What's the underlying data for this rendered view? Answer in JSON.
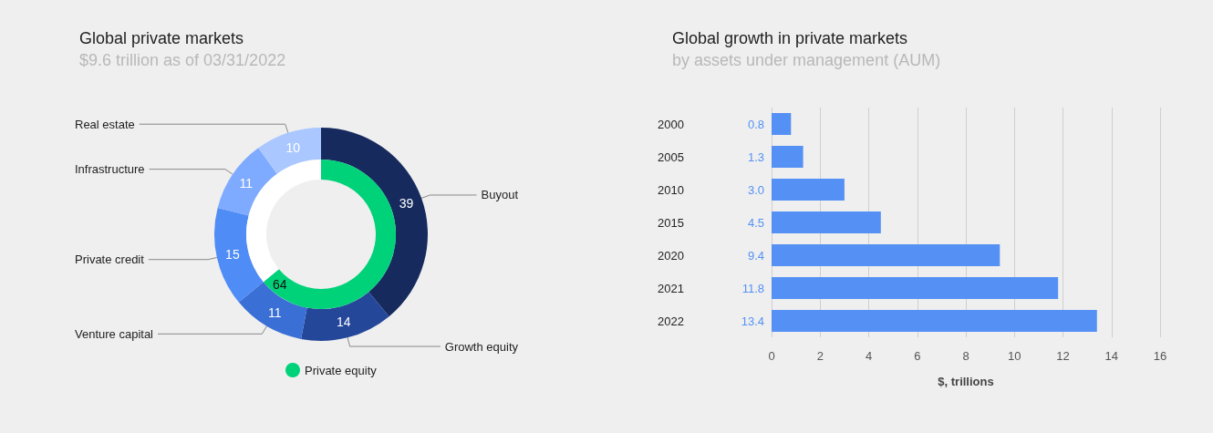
{
  "chart_data": [
    {
      "type": "donut",
      "title": "Global private markets",
      "subtitle": "$9.6 trillion as of 03/31/2022",
      "categories": [
        "Buyout",
        "Growth equity",
        "Venture capital",
        "Private credit",
        "Infrastructure",
        "Real estate"
      ],
      "values": [
        39,
        14,
        11,
        15,
        11,
        10
      ],
      "colors": [
        "#162a5e",
        "#24479a",
        "#3a6fd6",
        "#4f8cf5",
        "#7eaaff",
        "#aac8ff"
      ],
      "data_labels": true
    },
    {
      "type": "donut",
      "categories": [
        "Private equity",
        null
      ],
      "values": [
        64,
        36
      ],
      "colors": [
        "#00d27a",
        "#ffffff"
      ],
      "value_labels": [
        "64",
        null
      ],
      "legend": "bottom"
    },
    {
      "type": "bar",
      "orientation": "horizontal",
      "title": "Global growth in private markets",
      "subtitle": "by assets under management (AUM)",
      "categories": [
        "2000",
        "2005",
        "2010",
        "2015",
        "2020",
        "2021",
        "2022"
      ],
      "values": [
        0.8,
        1.3,
        3.0,
        4.5,
        9.4,
        11.8,
        13.4
      ],
      "value_labels": [
        "0.8",
        "1.3",
        "3.0",
        "4.5",
        "9.4",
        "11.8",
        "13.4"
      ],
      "color": "#5591f5",
      "xlim": [
        0,
        16
      ],
      "xticks": [
        0,
        2,
        4,
        6,
        8,
        10,
        12,
        14,
        16
      ],
      "xlabel": "$, trillions",
      "grid": "x",
      "legend": false
    }
  ]
}
